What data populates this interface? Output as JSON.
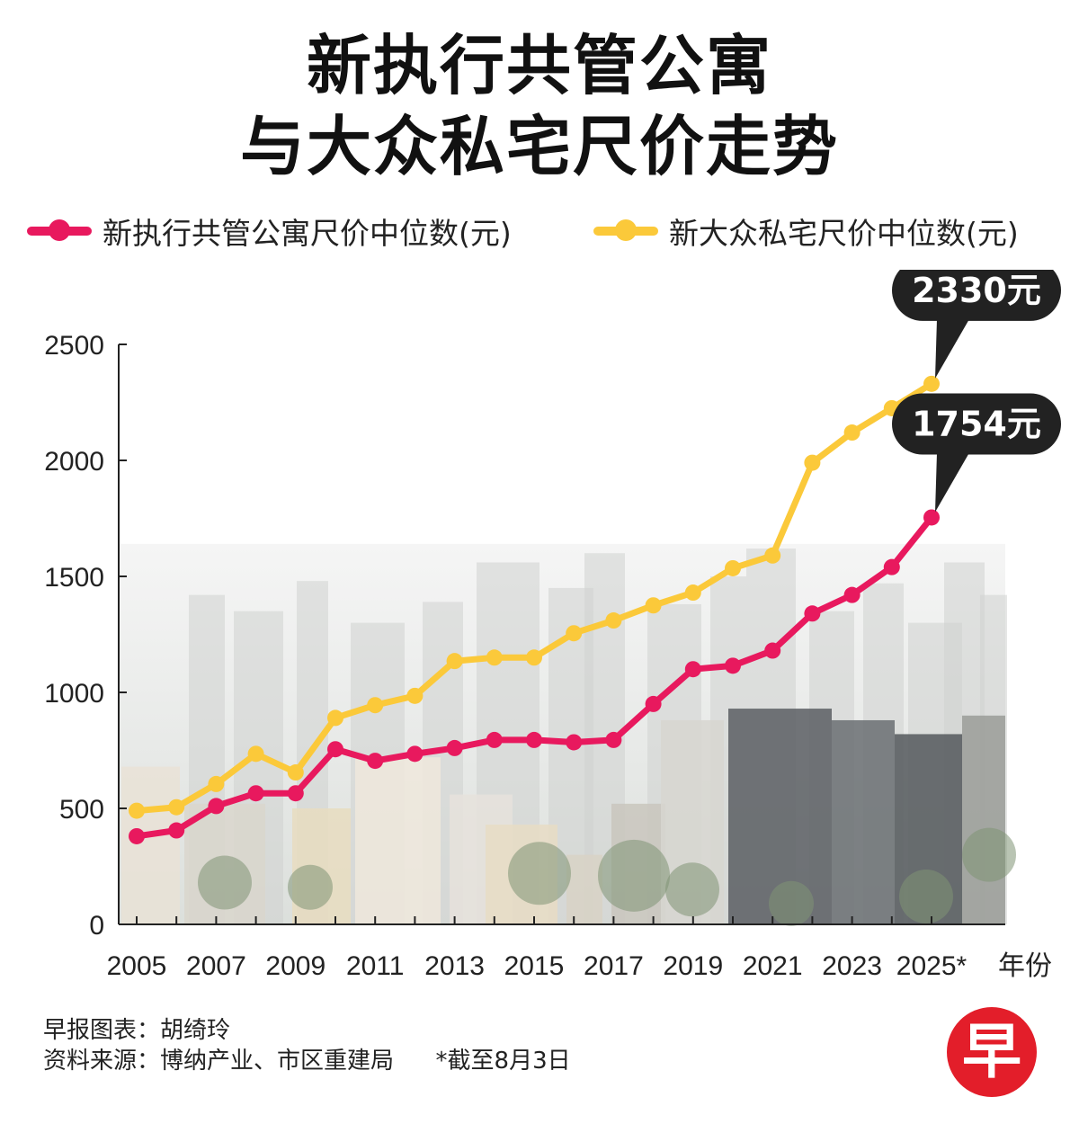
{
  "title": {
    "line1": "新执行共管公寓",
    "line2": "与大众私宅尺价走势"
  },
  "legend": [
    {
      "label": "新执行共管公寓尺价中位数(元)",
      "color": "#e8195e"
    },
    {
      "label": "新大众私宅尺价中位数(元)",
      "color": "#fbc93a"
    }
  ],
  "chart_data": {
    "type": "line",
    "x": [
      "2005",
      "2006",
      "2007",
      "2008",
      "2009",
      "2010",
      "2011",
      "2012",
      "2013",
      "2014",
      "2015",
      "2016",
      "2017",
      "2018",
      "2019",
      "2020",
      "2021",
      "2022",
      "2023",
      "2024",
      "2025*"
    ],
    "x_tick_labels": [
      "2005",
      "2007",
      "2009",
      "2011",
      "2013",
      "2015",
      "2017",
      "2019",
      "2021",
      "2023",
      "2025*"
    ],
    "xlabel": "年份",
    "ylim": [
      0,
      2500
    ],
    "y_ticks": [
      0,
      500,
      1000,
      1500,
      2000,
      2500
    ],
    "series": [
      {
        "name": "新执行共管公寓尺价中位数(元)",
        "color": "#e8195e",
        "values": [
          380,
          405,
          510,
          565,
          565,
          755,
          705,
          735,
          760,
          795,
          795,
          785,
          795,
          950,
          1100,
          1115,
          1180,
          1340,
          1420,
          1540,
          1754
        ]
      },
      {
        "name": "新大众私宅尺价中位数(元)",
        "color": "#fbc93a",
        "values": [
          490,
          505,
          605,
          735,
          655,
          890,
          945,
          985,
          1135,
          1150,
          1150,
          1255,
          1310,
          1375,
          1430,
          1535,
          1590,
          1990,
          2120,
          2225,
          2330
        ]
      }
    ],
    "annotations": [
      {
        "text": "2330元",
        "series": 1,
        "point": 20
      },
      {
        "text": "1754元",
        "series": 0,
        "point": 20
      }
    ]
  },
  "footer": {
    "credit": "早报图表：胡绮玲",
    "source": "资料来源：博纳产业、市区重建局",
    "note": "*截至8月3日"
  },
  "logo": {
    "text": "早"
  }
}
